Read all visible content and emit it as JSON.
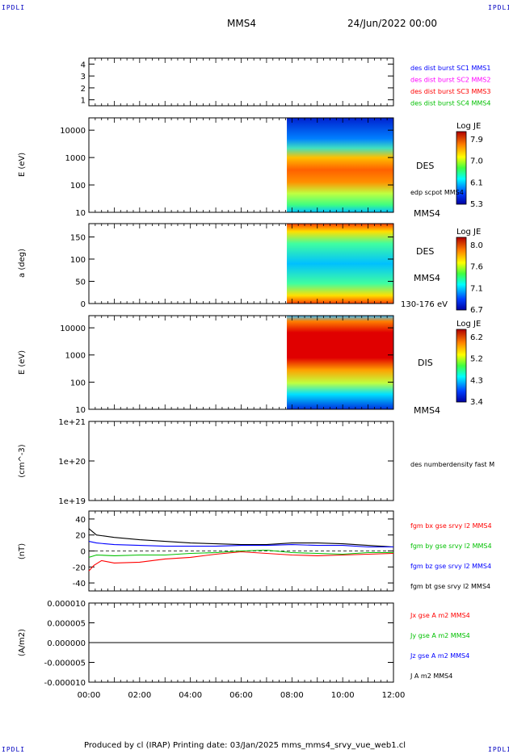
{
  "corner_label": "IPDLI",
  "header": {
    "spacecraft": "MMS4",
    "date": "24/Jun/2022 00:00"
  },
  "footer": "Produced by cl (IRAP)   Printing date: 03/Jan/2025   mms_mms4_srvy_vue_web1.cl",
  "x_ticks": [
    "00:00",
    "02:00",
    "04:00",
    "06:00",
    "08:00",
    "10:00",
    "12:00"
  ],
  "x_range_hours": [
    0,
    12
  ],
  "panels": {
    "burst": {
      "ylim": [
        0.5,
        4.5
      ],
      "yticks": [
        "1",
        "2",
        "3",
        "4"
      ],
      "legend": [
        {
          "text": "des dist burst SC1 MMS1",
          "color": "#0000ff"
        },
        {
          "text": "des dist burst SC2 MMS2",
          "color": "#ff00ff"
        },
        {
          "text": "des dist burst SC3 MMS3",
          "color": "#ff0000"
        },
        {
          "text": "des dist burst SC4 MMS4",
          "color": "#00c000"
        }
      ]
    },
    "des_energy": {
      "ylabel": "E (eV)",
      "yticks": [
        "10",
        "100",
        "1000",
        "10000"
      ],
      "label": "DES",
      "label2": "edp scpot MMS4",
      "sc": "MMS4",
      "cbar_title": "Log JE",
      "cbar_ticks": [
        "7.9",
        "7.0",
        "6.1",
        "5.3"
      ]
    },
    "des_pitch": {
      "ylabel": "a (deg)",
      "yticks": [
        "0",
        "50",
        "100",
        "150"
      ],
      "label": "DES",
      "sc": "MMS4",
      "sub": "130-176 eV",
      "cbar_title": "Log JE",
      "cbar_ticks": [
        "8.0",
        "7.6",
        "7.1",
        "6.7"
      ]
    },
    "dis_energy": {
      "ylabel": "E (eV)",
      "yticks": [
        "10",
        "100",
        "1000",
        "10000"
      ],
      "label": "DIS",
      "sc": "MMS4",
      "cbar_title": "Log JE",
      "cbar_ticks": [
        "6.2",
        "5.2",
        "4.3",
        "3.4"
      ]
    },
    "density": {
      "ylabel": "(cm^-3)",
      "yticks": [
        "1e+19",
        "1e+20",
        "1e+21"
      ],
      "label": "des numberdensity fast M"
    },
    "field": {
      "ylabel": "(nT)",
      "yticks": [
        "-40",
        "-20",
        "0",
        "20",
        "40"
      ],
      "legend": [
        {
          "text": "fgm bx gse srvy l2 MMS4",
          "color": "#ff0000"
        },
        {
          "text": "fgm by gse srvy l2 MMS4",
          "color": "#00c000"
        },
        {
          "text": "fgm bz gse srvy l2 MMS4",
          "color": "#0000ff"
        },
        {
          "text": "fgm bt gse srvy l2 MMS4",
          "color": "#000000"
        }
      ]
    },
    "current": {
      "ylabel": "(A/m2)",
      "yticks": [
        "-0.000010",
        "-0.000005",
        "0.000000",
        "0.000005",
        "0.000010"
      ],
      "legend": [
        {
          "text": "Jx gse A m2 MMS4",
          "color": "#ff0000"
        },
        {
          "text": "Jy gse A m2 MMS4",
          "color": "#00c000"
        },
        {
          "text": "Jz gse A m2 MMS4",
          "color": "#0000ff"
        },
        {
          "text": "J A m2 MMS4",
          "color": "#000000"
        }
      ]
    }
  },
  "chart_data": {
    "type": "line",
    "x_unit": "hours after 00:00 UT",
    "data_start_hour": 7.8,
    "series": [
      {
        "name": "fgm bt gse srvy l2 MMS4",
        "color": "#000000",
        "x": [
          0,
          0.3,
          1,
          2,
          3,
          4,
          5,
          6,
          7,
          8,
          9,
          10,
          11,
          12
        ],
        "y": [
          28,
          20,
          17,
          14,
          12,
          10,
          9,
          8,
          8,
          10,
          10,
          9,
          7,
          5
        ]
      },
      {
        "name": "fgm bz gse srvy l2 MMS4",
        "color": "#0000ff",
        "x": [
          0,
          0.3,
          1,
          2,
          3,
          4,
          5,
          6,
          7,
          8,
          9,
          10,
          11,
          12
        ],
        "y": [
          12,
          10,
          8,
          7,
          6,
          6,
          6,
          7,
          7,
          8,
          7,
          7,
          5,
          5
        ]
      },
      {
        "name": "fgm by gse srvy l2 MMS4",
        "color": "#00c000",
        "x": [
          0,
          0.3,
          1,
          2,
          3,
          4,
          5,
          6,
          7,
          8,
          9,
          10,
          11,
          12
        ],
        "y": [
          -8,
          -5,
          -6,
          -5,
          -5,
          -3,
          -2,
          0,
          1,
          -2,
          -3,
          -4,
          -2,
          -2
        ]
      },
      {
        "name": "fgm bx gse srvy l2 MMS4",
        "color": "#ff0000",
        "x": [
          0,
          0.2,
          0.5,
          1,
          2,
          3,
          4,
          5,
          6,
          7,
          8,
          9,
          10,
          11,
          12
        ],
        "y": [
          -25,
          -18,
          -12,
          -15,
          -14,
          -10,
          -8,
          -4,
          -1,
          -3,
          -5,
          -6,
          -5,
          -4,
          -3
        ]
      }
    ],
    "current_series": {
      "name": "J A m2 MMS4",
      "x": [
        0,
        12
      ],
      "y": [
        0,
        0
      ]
    }
  }
}
